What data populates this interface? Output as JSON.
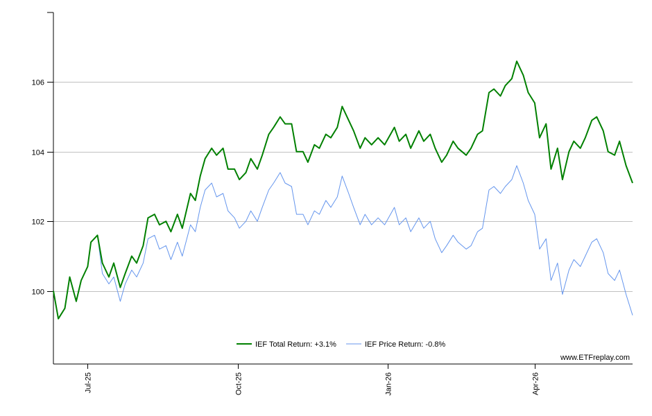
{
  "chart_data": {
    "type": "line",
    "title": "",
    "xlabel": "",
    "ylabel": "",
    "ylim": [
      97.9,
      108
    ],
    "yticks": [
      100,
      102,
      104,
      106
    ],
    "grid": "horizontal",
    "legend_position": "bottom-center",
    "x_tick_labels": [
      "Jul-25",
      "Oct-25",
      "Jan-26",
      "Apr-26"
    ],
    "x_range": [
      "2025-06-10",
      "2026-05-31"
    ],
    "x_ticks": [
      "2025-07-01",
      "2025-10-01",
      "2026-01-01",
      "2026-04-01"
    ],
    "watermark": "www.ETFreplay.com",
    "series": [
      {
        "name": "IEF Total Return: +3.1%",
        "color": "#008000",
        "x": [
          "2025-06-10",
          "2025-06-13",
          "2025-06-17",
          "2025-06-20",
          "2025-06-24",
          "2025-06-27",
          "2025-07-01",
          "2025-07-03",
          "2025-07-07",
          "2025-07-10",
          "2025-07-14",
          "2025-07-17",
          "2025-07-21",
          "2025-07-24",
          "2025-07-28",
          "2025-07-31",
          "2025-08-04",
          "2025-08-07",
          "2025-08-11",
          "2025-08-14",
          "2025-08-18",
          "2025-08-21",
          "2025-08-25",
          "2025-08-28",
          "2025-09-02",
          "2025-09-05",
          "2025-09-08",
          "2025-09-11",
          "2025-09-15",
          "2025-09-18",
          "2025-09-22",
          "2025-09-25",
          "2025-09-29",
          "2025-10-02",
          "2025-10-06",
          "2025-10-09",
          "2025-10-13",
          "2025-10-16",
          "2025-10-20",
          "2025-10-23",
          "2025-10-27",
          "2025-10-30",
          "2025-11-03",
          "2025-11-06",
          "2025-11-10",
          "2025-11-13",
          "2025-11-17",
          "2025-11-20",
          "2025-11-24",
          "2025-11-27",
          "2025-12-01",
          "2025-12-04",
          "2025-12-08",
          "2025-12-11",
          "2025-12-15",
          "2025-12-18",
          "2025-12-22",
          "2025-12-26",
          "2025-12-30",
          "2026-01-05",
          "2026-01-08",
          "2026-01-12",
          "2026-01-15",
          "2026-01-20",
          "2026-01-23",
          "2026-01-27",
          "2026-01-30",
          "2026-02-03",
          "2026-02-06",
          "2026-02-10",
          "2026-02-13",
          "2026-02-18",
          "2026-02-21",
          "2026-02-25",
          "2026-02-28",
          "2026-03-04",
          "2026-03-07",
          "2026-03-11",
          "2026-03-14",
          "2026-03-18",
          "2026-03-21",
          "2026-03-25",
          "2026-03-28",
          "2026-04-01",
          "2026-04-04",
          "2026-04-08",
          "2026-04-11",
          "2026-04-15",
          "2026-04-18",
          "2026-04-22",
          "2026-04-25",
          "2026-04-29",
          "2026-05-02",
          "2026-05-06",
          "2026-05-09",
          "2026-05-13",
          "2026-05-16",
          "2026-05-20",
          "2026-05-23",
          "2026-05-27",
          "2026-05-31"
        ],
        "y": [
          100.0,
          99.2,
          99.5,
          100.4,
          99.7,
          100.3,
          100.7,
          101.4,
          101.6,
          100.8,
          100.4,
          100.8,
          100.1,
          100.5,
          101.0,
          100.8,
          101.3,
          102.1,
          102.2,
          101.9,
          102.0,
          101.7,
          102.2,
          101.8,
          102.8,
          102.6,
          103.3,
          103.8,
          104.1,
          103.9,
          104.1,
          103.5,
          103.5,
          103.2,
          103.4,
          103.8,
          103.5,
          103.9,
          104.5,
          104.7,
          105.0,
          104.8,
          104.8,
          104.0,
          104.0,
          103.7,
          104.2,
          104.1,
          104.5,
          104.4,
          104.7,
          105.3,
          104.9,
          104.6,
          104.1,
          104.4,
          104.2,
          104.4,
          104.2,
          104.7,
          104.3,
          104.5,
          104.1,
          104.6,
          104.3,
          104.5,
          104.1,
          103.7,
          103.9,
          104.3,
          104.1,
          103.9,
          104.1,
          104.5,
          104.6,
          105.7,
          105.8,
          105.6,
          105.9,
          106.1,
          106.6,
          106.2,
          105.7,
          105.4,
          104.4,
          104.8,
          103.5,
          104.1,
          103.2,
          104.0,
          104.3,
          104.1,
          104.4,
          104.9,
          105.0,
          104.6,
          104.0,
          103.9,
          104.3,
          103.6,
          103.1
        ]
      },
      {
        "name": "IEF Price Return: -0.8%",
        "color": "#6495ED",
        "x": [
          "2025-06-10",
          "2025-06-13",
          "2025-06-17",
          "2025-06-20",
          "2025-06-24",
          "2025-06-27",
          "2025-07-01",
          "2025-07-03",
          "2025-07-07",
          "2025-07-10",
          "2025-07-14",
          "2025-07-17",
          "2025-07-21",
          "2025-07-24",
          "2025-07-28",
          "2025-07-31",
          "2025-08-04",
          "2025-08-07",
          "2025-08-11",
          "2025-08-14",
          "2025-08-18",
          "2025-08-21",
          "2025-08-25",
          "2025-08-28",
          "2025-09-02",
          "2025-09-05",
          "2025-09-08",
          "2025-09-11",
          "2025-09-15",
          "2025-09-18",
          "2025-09-22",
          "2025-09-25",
          "2025-09-29",
          "2025-10-02",
          "2025-10-06",
          "2025-10-09",
          "2025-10-13",
          "2025-10-16",
          "2025-10-20",
          "2025-10-23",
          "2025-10-27",
          "2025-10-30",
          "2025-11-03",
          "2025-11-06",
          "2025-11-10",
          "2025-11-13",
          "2025-11-17",
          "2025-11-20",
          "2025-11-24",
          "2025-11-27",
          "2025-12-01",
          "2025-12-04",
          "2025-12-08",
          "2025-12-11",
          "2025-12-15",
          "2025-12-18",
          "2025-12-22",
          "2025-12-26",
          "2025-12-30",
          "2026-01-05",
          "2026-01-08",
          "2026-01-12",
          "2026-01-15",
          "2026-01-20",
          "2026-01-23",
          "2026-01-27",
          "2026-01-30",
          "2026-02-03",
          "2026-02-06",
          "2026-02-10",
          "2026-02-13",
          "2026-02-18",
          "2026-02-21",
          "2026-02-25",
          "2026-02-28",
          "2026-03-04",
          "2026-03-07",
          "2026-03-11",
          "2026-03-14",
          "2026-03-18",
          "2026-03-21",
          "2026-03-25",
          "2026-03-28",
          "2026-04-01",
          "2026-04-04",
          "2026-04-08",
          "2026-04-11",
          "2026-04-15",
          "2026-04-18",
          "2026-04-22",
          "2026-04-25",
          "2026-04-29",
          "2026-05-02",
          "2026-05-06",
          "2026-05-09",
          "2026-05-13",
          "2026-05-16",
          "2026-05-20",
          "2026-05-23",
          "2026-05-27",
          "2026-05-31"
        ],
        "y": [
          100.0,
          99.2,
          99.5,
          100.4,
          99.7,
          100.3,
          100.7,
          101.4,
          101.6,
          100.5,
          100.2,
          100.4,
          99.7,
          100.2,
          100.6,
          100.4,
          100.8,
          101.5,
          101.6,
          101.2,
          101.3,
          100.9,
          101.4,
          101.0,
          101.9,
          101.7,
          102.4,
          102.9,
          103.1,
          102.7,
          102.8,
          102.3,
          102.1,
          101.8,
          102.0,
          102.3,
          102.0,
          102.4,
          102.9,
          103.1,
          103.4,
          103.1,
          103.0,
          102.2,
          102.2,
          101.9,
          102.3,
          102.2,
          102.6,
          102.4,
          102.7,
          103.3,
          102.8,
          102.4,
          101.9,
          102.2,
          101.9,
          102.1,
          101.9,
          102.4,
          101.9,
          102.1,
          101.7,
          102.1,
          101.8,
          102.0,
          101.5,
          101.1,
          101.3,
          101.6,
          101.4,
          101.2,
          101.3,
          101.7,
          101.8,
          102.9,
          103.0,
          102.8,
          103.0,
          103.2,
          103.6,
          103.1,
          102.6,
          102.2,
          101.2,
          101.5,
          100.3,
          100.8,
          99.9,
          100.6,
          100.9,
          100.7,
          101.0,
          101.4,
          101.5,
          101.1,
          100.5,
          100.3,
          100.6,
          99.9,
          99.3
        ]
      }
    ]
  }
}
